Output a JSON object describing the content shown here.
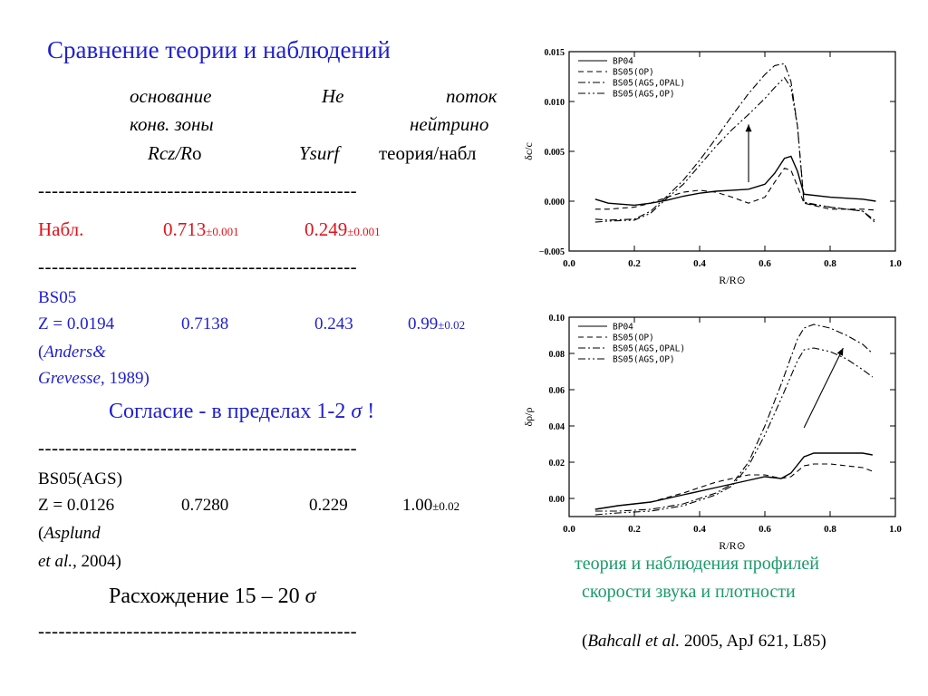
{
  "title": "Сравнение теории и наблюдений",
  "header": {
    "col1_line1": "основание",
    "col1_line2": "конв. зоны",
    "col1_line3a": "Rcz/R",
    "col1_line3b": "o",
    "col2_line1": "He",
    "col2_line3": "Ysurf",
    "col3_line1": "поток",
    "col3_line2": "нейтрино",
    "col3_line3": "теория/набл"
  },
  "separator": "-----------------------------------------------",
  "observed": {
    "label": "Набл.",
    "rcz": "0.713",
    "rcz_err": "±0.001",
    "ysurf": "0.249",
    "ysurf_err": "±0.001"
  },
  "bs05": {
    "model": "BS05",
    "z": "Z = 0.0194",
    "rcz": "0.7138",
    "ysurf": "0.243",
    "flux": "0.99",
    "flux_err": "±0.02",
    "ref_open": "(",
    "ref_author1": "Anders&",
    "ref_author2": "Grevesse,",
    "ref_year": " 1989)",
    "verdict_a": "Согласие - в пределах 1-2 ",
    "verdict_sigma": "σ",
    "verdict_b": " !"
  },
  "bs05ags": {
    "model": "BS05(AGS)",
    "z": "Z = 0.0126",
    "rcz": "0.7280",
    "ysurf": "0.229",
    "flux": "1.00",
    "flux_err": "±0.02",
    "ref_open": "(",
    "ref_author1": "Asplund",
    "ref_author2": "et al.,",
    "ref_year": " 2004)",
    "verdict_a": "Расхождение  15 – 20 ",
    "verdict_sigma": "σ"
  },
  "caption": {
    "line1": "теория и наблюдения профилей",
    "line2": "скорости звука и плотности"
  },
  "citation": {
    "open": "(",
    "authors": "Bahcall et al.",
    "rest": " 2005, ApJ 621, L85)"
  },
  "colors": {
    "title_blue": "#1f1fd1",
    "observed_red": "#e0131b",
    "caption_green": "#1a9a6a"
  },
  "chart_data": [
    {
      "type": "line",
      "xlabel": "R/R⊙",
      "ylabel": "δc/c",
      "xlim": [
        0.0,
        1.0
      ],
      "ylim": [
        -0.005,
        0.015
      ],
      "xticks": [
        "0.0",
        "0.2",
        "0.4",
        "0.6",
        "0.8",
        "1.0"
      ],
      "yticks": [
        "−0.005",
        "0.000",
        "0.005",
        "0.010",
        "0.015"
      ],
      "legend": "top-left",
      "annotation": "arrow",
      "series": [
        {
          "name": "BP04",
          "dash": "solid",
          "x": [
            0.08,
            0.12,
            0.2,
            0.25,
            0.3,
            0.35,
            0.4,
            0.45,
            0.5,
            0.55,
            0.6,
            0.63,
            0.66,
            0.68,
            0.7,
            0.72,
            0.8,
            0.9,
            0.94
          ],
          "y": [
            0.0002,
            -0.0002,
            -0.0004,
            -0.0002,
            0.0001,
            0.0005,
            0.0008,
            0.001,
            0.0011,
            0.0012,
            0.0017,
            0.0028,
            0.0043,
            0.0045,
            0.003,
            0.0007,
            0.0004,
            0.0002,
            0.0
          ]
        },
        {
          "name": "BS05(OP)",
          "dash": "dashed",
          "x": [
            0.08,
            0.12,
            0.2,
            0.25,
            0.3,
            0.35,
            0.4,
            0.45,
            0.5,
            0.55,
            0.6,
            0.63,
            0.66,
            0.68,
            0.7,
            0.72,
            0.8,
            0.9,
            0.94
          ],
          "y": [
            -0.0008,
            -0.0008,
            -0.0006,
            -0.0002,
            0.0004,
            0.0009,
            0.0011,
            0.0009,
            0.0004,
            -0.0002,
            0.0004,
            0.0019,
            0.0033,
            0.0031,
            0.0015,
            -0.0002,
            -0.0008,
            -0.0008,
            -0.0009
          ]
        },
        {
          "name": "BS05(AGS,OPAL)",
          "dash": "dashdot",
          "x": [
            0.08,
            0.12,
            0.2,
            0.25,
            0.3,
            0.35,
            0.4,
            0.45,
            0.5,
            0.55,
            0.6,
            0.63,
            0.66,
            0.68,
            0.7,
            0.72,
            0.8,
            0.9,
            0.94
          ],
          "y": [
            -0.0018,
            -0.0019,
            -0.0018,
            -0.001,
            0.0005,
            0.0021,
            0.0041,
            0.0063,
            0.0086,
            0.0108,
            0.0127,
            0.0136,
            0.0138,
            0.012,
            0.0075,
            -0.0002,
            -0.0006,
            -0.001,
            -0.0022
          ]
        },
        {
          "name": "BS05(AGS,OP)",
          "dash": "dashdotdot",
          "x": [
            0.08,
            0.12,
            0.2,
            0.25,
            0.3,
            0.35,
            0.4,
            0.45,
            0.5,
            0.55,
            0.6,
            0.63,
            0.66,
            0.68,
            0.7,
            0.72,
            0.8,
            0.9,
            0.94
          ],
          "y": [
            -0.0021,
            -0.002,
            -0.0019,
            -0.0012,
            0.0003,
            0.0017,
            0.0036,
            0.0055,
            0.0072,
            0.0087,
            0.0103,
            0.0114,
            0.0124,
            0.0114,
            0.0075,
            -0.0001,
            -0.0006,
            -0.001,
            -0.002
          ]
        }
      ],
      "arrow": {
        "x": 0.55,
        "y_from": 0.0019,
        "y_to": 0.0077
      }
    },
    {
      "type": "line",
      "xlabel": "R/R⊙",
      "ylabel": "δρ/ρ",
      "xlim": [
        0.0,
        1.0
      ],
      "ylim": [
        -0.01,
        0.1
      ],
      "xticks": [
        "0.0",
        "0.2",
        "0.4",
        "0.6",
        "0.8",
        "1.0"
      ],
      "yticks": [
        "0.00",
        "0.02",
        "0.04",
        "0.06",
        "0.08",
        "0.10"
      ],
      "legend": "top-left",
      "annotation": "arrow",
      "series": [
        {
          "name": "BP04",
          "dash": "solid",
          "x": [
            0.08,
            0.15,
            0.25,
            0.35,
            0.45,
            0.55,
            0.6,
            0.65,
            0.68,
            0.72,
            0.75,
            0.8,
            0.85,
            0.9,
            0.93
          ],
          "y": [
            -0.006,
            -0.004,
            -0.002,
            0.002,
            0.006,
            0.01,
            0.012,
            0.011,
            0.014,
            0.023,
            0.025,
            0.025,
            0.025,
            0.025,
            0.024
          ]
        },
        {
          "name": "BS05(OP)",
          "dash": "dashed",
          "x": [
            0.08,
            0.15,
            0.25,
            0.35,
            0.45,
            0.55,
            0.6,
            0.65,
            0.68,
            0.72,
            0.75,
            0.8,
            0.85,
            0.9,
            0.93
          ],
          "y": [
            -0.006,
            -0.004,
            -0.002,
            0.003,
            0.009,
            0.013,
            0.013,
            0.011,
            0.012,
            0.018,
            0.019,
            0.019,
            0.018,
            0.017,
            0.015
          ]
        },
        {
          "name": "BS05(AGS,OPAL)",
          "dash": "dashdot",
          "x": [
            0.08,
            0.15,
            0.25,
            0.35,
            0.45,
            0.5,
            0.55,
            0.6,
            0.65,
            0.7,
            0.72,
            0.75,
            0.8,
            0.85,
            0.9,
            0.93
          ],
          "y": [
            -0.007,
            -0.007,
            -0.006,
            -0.003,
            0.003,
            0.008,
            0.02,
            0.04,
            0.063,
            0.088,
            0.094,
            0.096,
            0.094,
            0.09,
            0.085,
            0.08
          ]
        },
        {
          "name": "BS05(AGS,OP)",
          "dash": "dashdotdot",
          "x": [
            0.08,
            0.15,
            0.25,
            0.35,
            0.45,
            0.5,
            0.55,
            0.6,
            0.65,
            0.7,
            0.72,
            0.75,
            0.8,
            0.85,
            0.9,
            0.93
          ],
          "y": [
            -0.009,
            -0.008,
            -0.007,
            -0.004,
            0.002,
            0.007,
            0.018,
            0.035,
            0.055,
            0.076,
            0.082,
            0.083,
            0.081,
            0.077,
            0.071,
            0.067
          ]
        }
      ],
      "arrow": {
        "x0": 0.72,
        "y0": 0.039,
        "x1": 0.84,
        "y1": 0.083
      }
    }
  ]
}
